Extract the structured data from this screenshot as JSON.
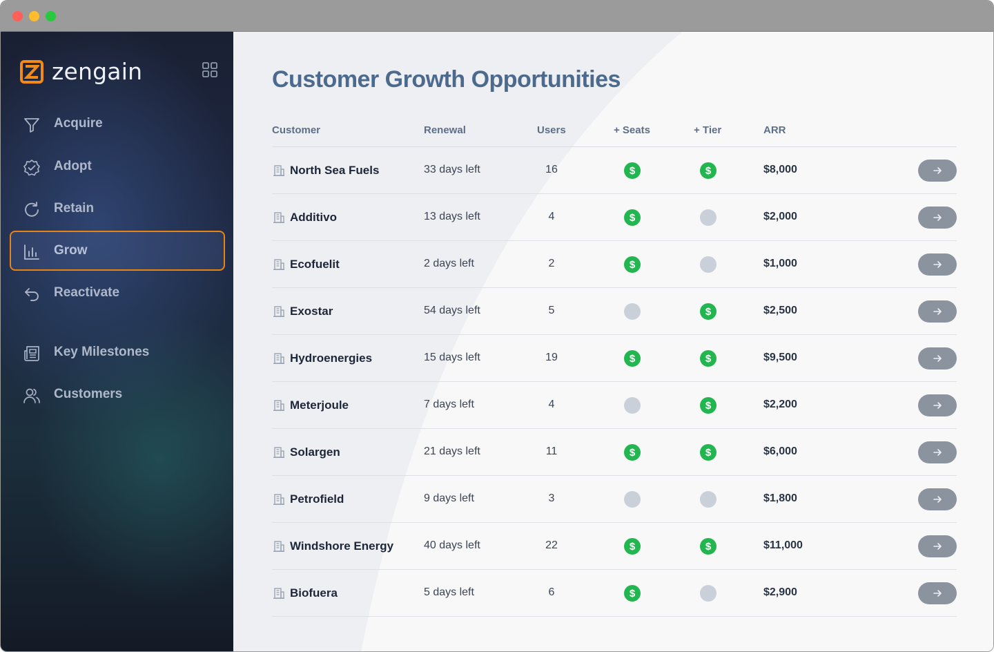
{
  "app": {
    "brand_name": "zengain",
    "accent_color": "#f28a17"
  },
  "sidebar": {
    "items": [
      {
        "label": "Acquire",
        "icon": "funnel-icon",
        "active": false
      },
      {
        "label": "Adopt",
        "icon": "badge-check-icon",
        "active": false
      },
      {
        "label": "Retain",
        "icon": "refresh-icon",
        "active": false
      },
      {
        "label": "Grow",
        "icon": "bar-chart-icon",
        "active": true
      },
      {
        "label": "Reactivate",
        "icon": "undo-arrow-icon",
        "active": false
      },
      {
        "label": "Key Milestones",
        "icon": "newspaper-icon",
        "active": false
      },
      {
        "label": "Customers",
        "icon": "users-icon",
        "active": false
      }
    ]
  },
  "main": {
    "title": "Customer Growth Opportunities",
    "table": {
      "columns": [
        "Customer",
        "Renewal",
        "Users",
        "+ Seats",
        "+ Tier",
        "ARR"
      ],
      "rows": [
        {
          "customer": "North Sea Fuels",
          "renewal": "33 days left",
          "users": "16",
          "seats": true,
          "tier": true,
          "arr": "$8,000"
        },
        {
          "customer": "Additivo",
          "renewal": "13 days left",
          "users": "4",
          "seats": true,
          "tier": false,
          "arr": "$2,000"
        },
        {
          "customer": "Ecofuelit",
          "renewal": "2 days left",
          "users": "2",
          "seats": true,
          "tier": false,
          "arr": "$1,000"
        },
        {
          "customer": "Exostar",
          "renewal": "54 days left",
          "users": "5",
          "seats": false,
          "tier": true,
          "arr": "$2,500"
        },
        {
          "customer": "Hydroenergies",
          "renewal": "15 days left",
          "users": "19",
          "seats": true,
          "tier": true,
          "arr": "$9,500"
        },
        {
          "customer": "Meterjoule",
          "renewal": "7 days left",
          "users": "4",
          "seats": false,
          "tier": true,
          "arr": "$2,200"
        },
        {
          "customer": "Solargen",
          "renewal": "21 days left",
          "users": "11",
          "seats": true,
          "tier": true,
          "arr": "$6,000"
        },
        {
          "customer": "Petrofield",
          "renewal": "9 days left",
          "users": "3",
          "seats": false,
          "tier": false,
          "arr": "$1,800"
        },
        {
          "customer": "Windshore Energy",
          "renewal": "40 days left",
          "users": "22",
          "seats": true,
          "tier": true,
          "arr": "$11,000"
        },
        {
          "customer": "Biofuera",
          "renewal": "5 days left",
          "users": "6",
          "seats": true,
          "tier": false,
          "arr": "$2,900"
        }
      ],
      "opportunity_on_symbol": "$",
      "opportunity_on_color": "#22b550",
      "opportunity_off_color": "#c9d0da",
      "row_action_icon": "arrow-right-icon"
    }
  }
}
